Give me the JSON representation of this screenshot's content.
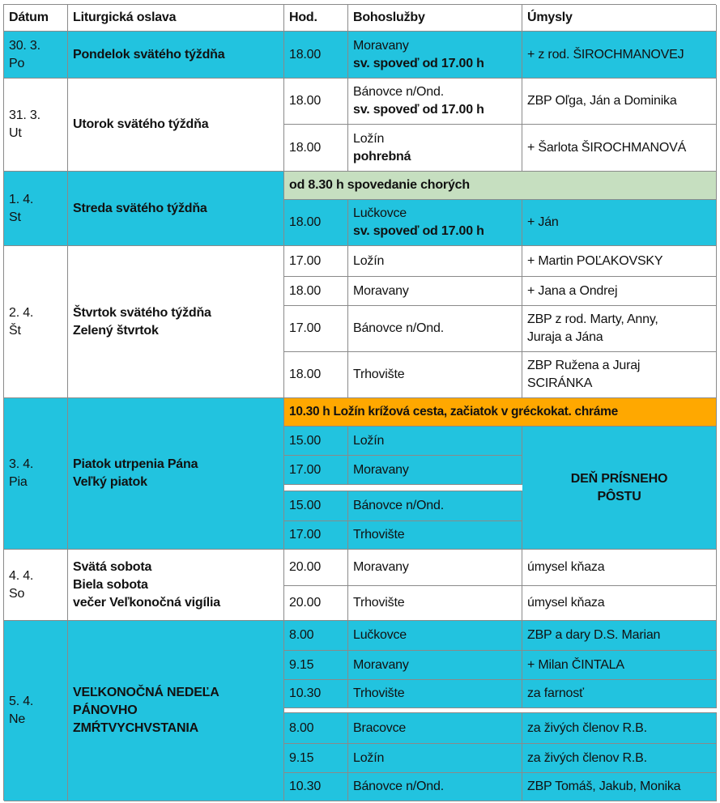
{
  "colors": {
    "highlight": "#22c3df",
    "confession_banner": "#c6dfc0",
    "friday_banner": "#ffa800"
  },
  "header": {
    "date": "Dátum",
    "celebration": "Liturgická oslava",
    "hour": "Hod.",
    "services": "Bohoslužby",
    "intentions": "Úmysly"
  },
  "days": [
    {
      "date1": "30. 3.",
      "date2": "Po",
      "title": "Pondelok svätého týždňa",
      "rows": [
        {
          "hour": "18.00",
          "place": "Moravany",
          "note": "sv. spoveď od 17.00 h",
          "intent": "+ z rod. ŠIROCHMANOVEJ"
        }
      ]
    },
    {
      "date1": "31. 3.",
      "date2": "Ut",
      "title": "Utorok svätého týždňa",
      "rows": [
        {
          "hour": "18.00",
          "place": "Bánovce n/Ond.",
          "note": "sv. spoveď od 17.00 h",
          "intent": "ZBP Oľga, Ján a Dominika"
        },
        {
          "hour": "18.00",
          "place": "Ložín",
          "note": "pohrebná",
          "intent": "+ Šarlota ŠIROCHMANOVÁ"
        }
      ]
    },
    {
      "date1": "1. 4.",
      "date2": "St",
      "title": "Streda svätého týždňa",
      "banner": "od 8.30 h spovedanie chorých",
      "rows": [
        {
          "hour": "18.00",
          "place": "Lučkovce",
          "note": "sv. spoveď od 17.00 h",
          "intent": "+ Ján"
        }
      ]
    },
    {
      "date1": "2. 4.",
      "date2": "Št",
      "title1": "Štvrtok svätého týždňa",
      "title2": "Zelený štvrtok",
      "rows": [
        {
          "hour": "17.00",
          "place": "Ložín",
          "intent": "+ Martin POĽAKOVSKY"
        },
        {
          "hour": "18.00",
          "place": "Moravany",
          "intent": "+ Jana a Ondrej"
        },
        {
          "hour": "17.00",
          "place": "Bánovce n/Ond.",
          "intent1": "ZBP z rod. Marty, Anny,",
          "intent2": "Juraja a Jána"
        },
        {
          "hour": "18.00",
          "place": "Trhovište",
          "intent1": "ZBP Ružena a Juraj",
          "intent2": "SCIRÁNKA"
        }
      ]
    },
    {
      "date1": "3. 4.",
      "date2": "Pia",
      "title1": "Piatok utrpenia Pána",
      "title2": "Veľký piatok",
      "banner": "10.30 h Ložín krížová cesta,  začiatok v gréckokat. chráme",
      "intent1": "DEŇ PRÍSNEHO",
      "intent2": "PÔSTU",
      "rows": [
        {
          "hour": "15.00",
          "place": "Ložín"
        },
        {
          "hour": "17.00",
          "place": "Moravany"
        },
        {
          "hour": "15.00",
          "place": "Bánovce n/Ond."
        },
        {
          "hour": "17.00",
          "place": "Trhovište"
        }
      ]
    },
    {
      "date1": "4. 4.",
      "date2": "So",
      "title1": "Svätá sobota",
      "title2": "Biela sobota",
      "title3": "večer Veľkonočná vigília",
      "rows": [
        {
          "hour": "20.00",
          "place": "Moravany",
          "intent": "úmysel kňaza"
        },
        {
          "hour": "20.00",
          "place": "Trhovište",
          "intent": "úmysel kňaza"
        }
      ]
    },
    {
      "date1": "5. 4.",
      "date2": "Ne",
      "title1": "VEĽKONOČNÁ NEDEĽA",
      "title2": "PÁNOVHO",
      "title3": "ZMŔTVYCHVSTANIA",
      "rows": [
        {
          "hour": "8.00",
          "place": "Lučkovce",
          "intent": "ZBP a dary D.S. Marian"
        },
        {
          "hour": "9.15",
          "place": "Moravany",
          "intent": "+ Milan ČINTALA"
        },
        {
          "hour": "10.30",
          "place": "Trhovište",
          "intent": "za farnosť"
        },
        {
          "hour": "8.00",
          "place": "Bracovce",
          "intent": "za živých členov R.B."
        },
        {
          "hour": "9.15",
          "place": "Ložín",
          "intent": "za živých členov R.B."
        },
        {
          "hour": "10.30",
          "place": "Bánovce n/Ond.",
          "intent": "ZBP Tomáš, Jakub, Monika"
        }
      ]
    }
  ]
}
